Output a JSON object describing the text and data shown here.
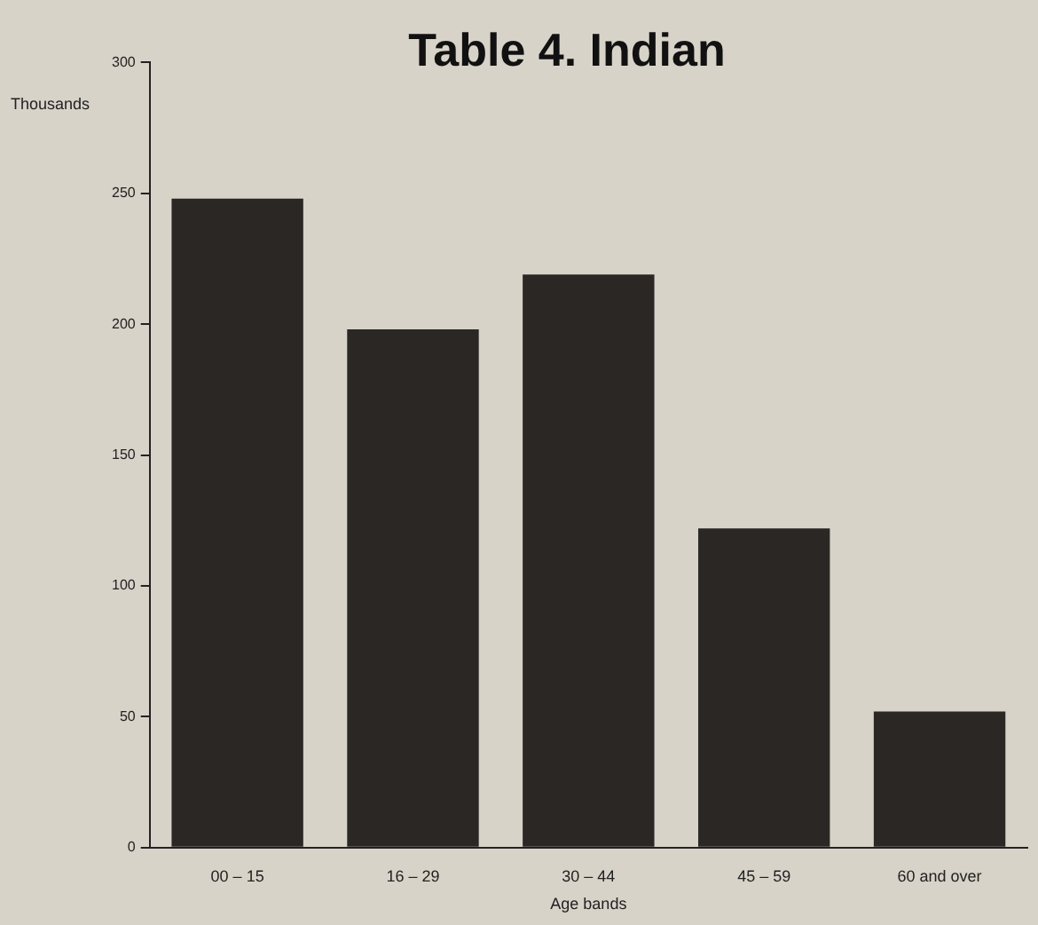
{
  "chart_data": {
    "type": "bar",
    "title": "Table 4. Indian",
    "xlabel": "Age bands",
    "ylabel": "Thousands",
    "categories": [
      "00 – 15",
      "16 – 29",
      "30 – 44",
      "45 – 59",
      "60 and over"
    ],
    "values": [
      248,
      198,
      219,
      122,
      52
    ],
    "color": "#2a2725",
    "ylim": [
      0,
      300
    ],
    "yticks": [
      0,
      50,
      100,
      150,
      200,
      250,
      300
    ],
    "grid": false,
    "legend": false
  }
}
